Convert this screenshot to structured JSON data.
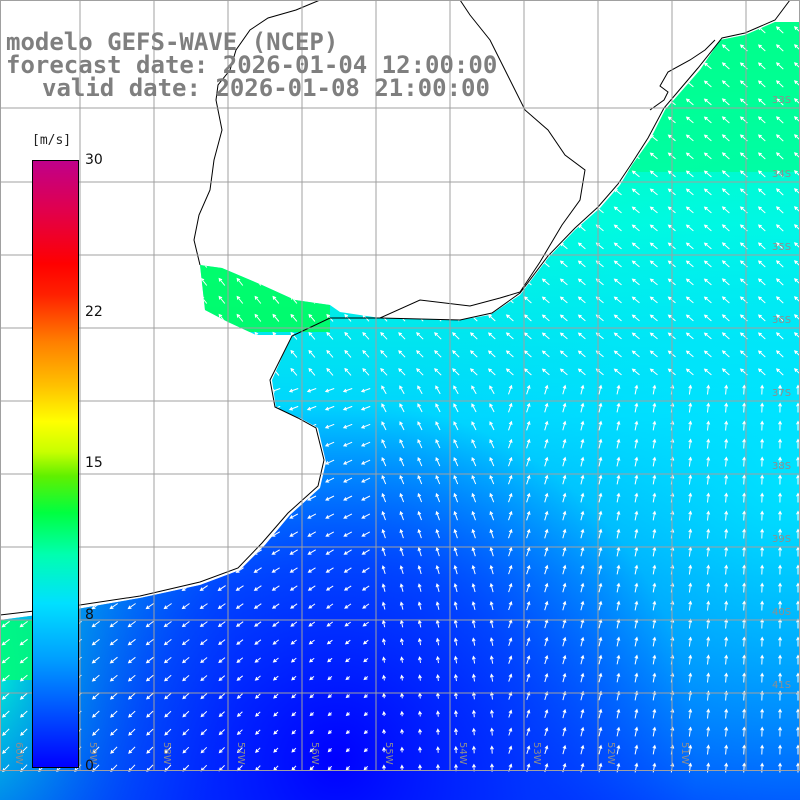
{
  "title": {
    "model": "modelo GEFS-WAVE (NCEP)",
    "forecast": "forecast date: 2026-01-04 12:00:00",
    "valid": "valid date: 2026-01-08 21:00:00"
  },
  "colorbar": {
    "units": "[m/s]",
    "min": 0,
    "max": 30,
    "ticks": [
      {
        "label": "30",
        "value": 30
      },
      {
        "label": "22",
        "value": 22.5
      },
      {
        "label": "15",
        "value": 15
      },
      {
        "label": "8",
        "value": 7.5
      },
      {
        "label": "0",
        "value": 0
      }
    ]
  },
  "map": {
    "lon_labels": [
      "60W",
      "59W",
      "58W",
      "57W",
      "56W",
      "55W",
      "54W",
      "53W",
      "52W",
      "51W"
    ],
    "lat_labels": [
      "33S",
      "34S",
      "35S",
      "36S",
      "37S",
      "38S",
      "39S",
      "40S",
      "41S"
    ],
    "colors": {
      "ocean_fill": "#00a0ff",
      "grid": "#a0a0a0",
      "coast": "#000000",
      "arrows": "#ffffff"
    }
  }
}
